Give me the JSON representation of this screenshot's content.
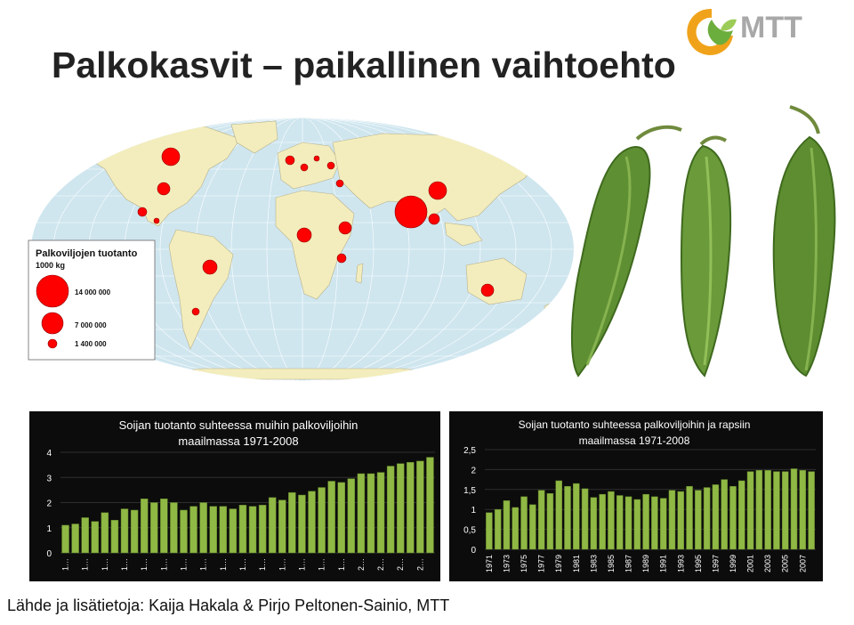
{
  "slide": {
    "title": "Palkokasvit – paikallinen vaihtoehto",
    "source": "Lähde ja lisätietoja: Kaija Hakala & Pirjo Peltonen-Sainio, MTT"
  },
  "logo": {
    "text": "MTT"
  },
  "map": {
    "legend_title": "Palkoviljojen tuotanto",
    "legend_unit": "1000 kg",
    "legend_items": [
      "14 000 000",
      "7 000 000",
      "1 400 000"
    ]
  },
  "chart_data": [
    {
      "type": "bar",
      "title": "Soijan tuotanto suhteessa muihin palkoviljoihin maailmassa 1971-2008",
      "title_lines": [
        "Soijan tuotanto suhteessa muihin palkoviljoihin",
        "maailmassa 1971-2008"
      ],
      "ylim": [
        0,
        4
      ],
      "yticks": [
        "0",
        "1",
        "2",
        "3",
        "4"
      ],
      "category_labels": [
        "1…",
        "1…",
        "1…",
        "1…",
        "1…",
        "1…",
        "1…",
        "1…",
        "1…",
        "1…",
        "1…",
        "1…",
        "1…",
        "1…",
        "1…",
        "2…",
        "2…",
        "2…",
        "2…"
      ],
      "values": [
        1.1,
        1.15,
        1.4,
        1.25,
        1.6,
        1.3,
        1.75,
        1.7,
        2.15,
        2.0,
        2.15,
        2.0,
        1.7,
        1.85,
        2.0,
        1.85,
        1.85,
        1.75,
        1.9,
        1.85,
        1.9,
        2.2,
        2.1,
        2.4,
        2.3,
        2.45,
        2.6,
        2.85,
        2.8,
        2.95,
        3.15,
        3.15,
        3.2,
        3.45,
        3.55,
        3.6,
        3.65,
        3.8
      ],
      "color": "#8fb844",
      "grid": true
    },
    {
      "type": "bar",
      "title": "Soijan tuotanto suhteessa palkoviljoihin ja rapsiin maailmassa 1971-2008",
      "title_lines": [
        "Soijan tuotanto suhteessa palkoviljoihin ja rapsiin",
        "maailmassa 1971-2008"
      ],
      "ylim": [
        0,
        2.5
      ],
      "yticks": [
        "0",
        "0,5",
        "1",
        "1,5",
        "2",
        "2,5"
      ],
      "category_labels": [
        "1971",
        "1973",
        "1975",
        "1977",
        "1979",
        "1981",
        "1983",
        "1985",
        "1987",
        "1989",
        "1991",
        "1993",
        "1995",
        "1997",
        "1999",
        "2001",
        "2003",
        "2005",
        "2007"
      ],
      "values": [
        0.92,
        1.0,
        1.22,
        1.05,
        1.32,
        1.12,
        1.48,
        1.4,
        1.72,
        1.58,
        1.65,
        1.52,
        1.3,
        1.38,
        1.45,
        1.35,
        1.32,
        1.25,
        1.38,
        1.32,
        1.28,
        1.48,
        1.45,
        1.58,
        1.48,
        1.55,
        1.62,
        1.75,
        1.58,
        1.72,
        1.95,
        1.98,
        1.98,
        1.95,
        1.95,
        2.02,
        1.98,
        1.95
      ],
      "color": "#8fb844",
      "grid": true
    }
  ]
}
